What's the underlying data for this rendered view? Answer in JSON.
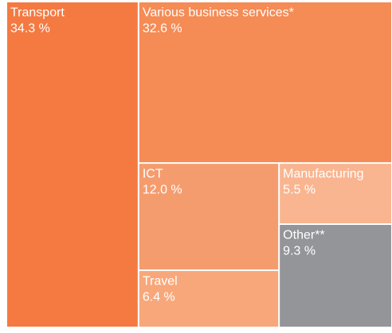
{
  "chart_data": {
    "type": "treemap",
    "categories": [
      "Transport",
      "Various business services*",
      "ICT",
      "Travel",
      "Manufacturing",
      "Other**"
    ],
    "values": [
      34.3,
      32.6,
      12.0,
      6.4,
      5.5,
      9.3
    ],
    "value_labels": [
      "34.3 %",
      "32.6 %",
      "12.0 %",
      "6.4 %",
      "5.5 %",
      "9.3 %"
    ],
    "colors": [
      "#f47a42",
      "#f58b55",
      "#f59c6e",
      "#f7a77a",
      "#f9b590",
      "#939598"
    ]
  }
}
